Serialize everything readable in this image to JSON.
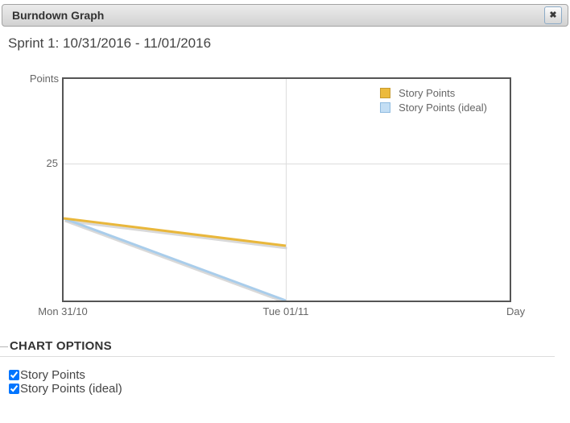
{
  "window": {
    "title": "Burndown Graph",
    "close_icon": "✖"
  },
  "sprint_heading": "Sprint 1: 10/31/2016 - 11/01/2016",
  "chart_data": {
    "type": "line",
    "categories": [
      "Mon 31/10",
      "Tue 01/11"
    ],
    "x_axis_title": "Day",
    "y_axis_title": "Points",
    "y_ticks": [
      "25"
    ],
    "ylim": [
      0,
      40
    ],
    "grid": true,
    "legend_position": "top-right",
    "series": [
      {
        "name": "Story Points",
        "values": [
          15,
          10
        ],
        "line_color": "#e9b73b",
        "legend_fill": "#ecba3b",
        "legend_border": "#c79a2f"
      },
      {
        "name": "Story Points (ideal)",
        "values": [
          15,
          0
        ],
        "line_color": "#a9cdeb",
        "legend_fill": "#c3def4",
        "legend_border": "#8fbbe0"
      }
    ],
    "shadow_color": "#cfcfcf"
  },
  "chart_options": {
    "heading": "CHART OPTIONS",
    "checkboxes": [
      {
        "label": "Story Points",
        "checked": true
      },
      {
        "label": "Story Points (ideal)",
        "checked": true
      }
    ]
  }
}
